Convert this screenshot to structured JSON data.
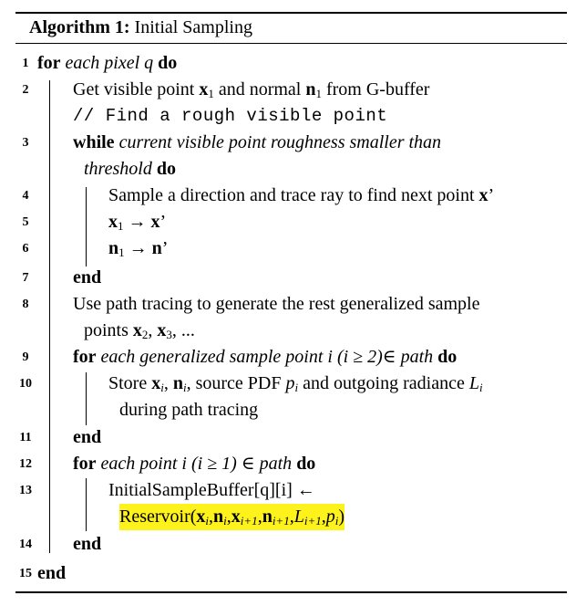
{
  "caption": {
    "label": "Algorithm 1:",
    "title": "Initial Sampling"
  },
  "lines": {
    "l1": {
      "num": "1",
      "kw": "for",
      "it": "each pixel q",
      "kw2": "do"
    },
    "l2": {
      "num": "2",
      "a": "Get visible point ",
      "x": "x",
      "x_sub": "1",
      "b": " and normal ",
      "n": "n",
      "n_sub": "1",
      "c": " from G-buffer"
    },
    "l2c": {
      "text": "// Find a rough visible point"
    },
    "l3": {
      "num": "3",
      "kw": "while",
      "it": "current visible point roughness smaller than"
    },
    "l3b": {
      "it": "threshold",
      "kw": "do"
    },
    "l4": {
      "num": "4",
      "a": "Sample a direction and trace ray to find next point ",
      "x": "x",
      "prime": "’"
    },
    "l5": {
      "num": "5",
      "x": "x",
      "sub": "1",
      "arrow": "→",
      "x2": "x",
      "prime": "’"
    },
    "l6": {
      "num": "6",
      "n": "n",
      "sub": "1",
      "arrow": "→",
      "n2": "n",
      "prime": "’"
    },
    "l7": {
      "num": "7",
      "kw": "end"
    },
    "l8": {
      "num": "8",
      "text": "Use path tracing to generate the rest generalized sample"
    },
    "l8b": {
      "a": "points ",
      "x2": "x",
      "x2_sub": "2",
      "comma": ", ",
      "x3": "x",
      "x3_sub": "3",
      "rest": ", ..."
    },
    "l9": {
      "num": "9",
      "kw": "for",
      "it": "each generalized sample point i (i ≥ 2)∈ path",
      "kw2": "do"
    },
    "l10": {
      "num": "10",
      "a": "Store ",
      "x": "x",
      "i1": "i",
      "c1": ", ",
      "n": "n",
      "i2": "i",
      "b": ", source PDF ",
      "p": "p",
      "i3": "i",
      "c": " and outgoing radiance ",
      "L": "L",
      "i4": "i"
    },
    "l10b": {
      "text": "during path tracing"
    },
    "l11": {
      "num": "11",
      "kw": "end"
    },
    "l12": {
      "num": "12",
      "kw": "for",
      "it": "each point i (i ≥ 1) ∈ path",
      "kw2": "do"
    },
    "l13": {
      "num": "13",
      "text": "InitialSampleBuffer[q][i] ←"
    },
    "l13b": {
      "name": "Reservoir(",
      "x": "x",
      "s1": "i",
      "c1": ",",
      "n": "n",
      "s2": "i",
      "c2": ",",
      "x2": "x",
      "s3": "i+1",
      "c3": ",",
      "n2": "n",
      "s4": "i+1",
      "c4": ",",
      "L": "L",
      "s5": "i+1",
      "c5": ",",
      "p": "p",
      "s6": "i",
      "close": ")"
    },
    "l14": {
      "num": "14",
      "kw": "end"
    },
    "l15": {
      "num": "15",
      "kw": "end"
    }
  }
}
